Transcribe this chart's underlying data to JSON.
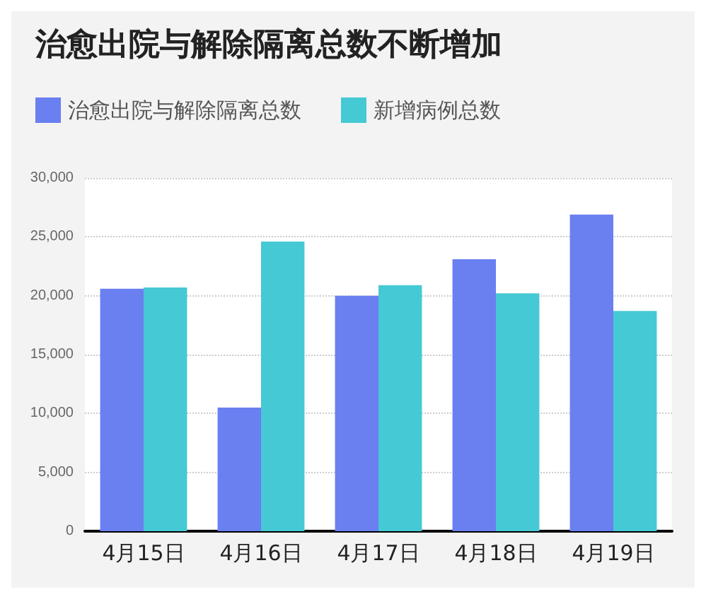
{
  "chart_data": {
    "type": "bar",
    "title": "治愈出院与解除隔离总数不断增加",
    "categories": [
      "4月15日",
      "4月16日",
      "4月17日",
      "4月18日",
      "4月19日"
    ],
    "series": [
      {
        "name": "治愈出院与解除隔离总数",
        "color": "#6a7ff0",
        "values": [
          20600,
          10500,
          20000,
          23100,
          26900
        ]
      },
      {
        "name": "新增病例总数",
        "color": "#45c9d4",
        "values": [
          20700,
          24600,
          20900,
          20200,
          18700
        ]
      }
    ],
    "ylim": [
      0,
      30000
    ],
    "yticks": [
      0,
      {
        "value": 5000,
        "label": "5,000"
      },
      {
        "value": 10000,
        "label": "10,000"
      },
      {
        "value": 15000,
        "label": "15,000"
      },
      {
        "value": 20000,
        "label": "20,000"
      },
      {
        "value": 25000,
        "label": "25,000"
      },
      {
        "value": 30000,
        "label": "30,000"
      }
    ],
    "grid": "y",
    "legend": "top left"
  }
}
